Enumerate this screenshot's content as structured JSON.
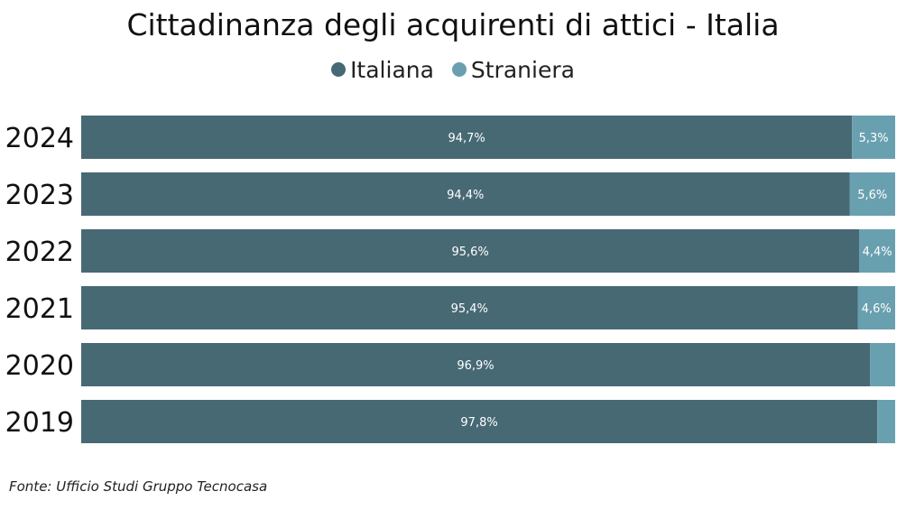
{
  "chart_data": {
    "type": "bar",
    "orientation": "horizontal-stacked-100",
    "title": "Cittadinanza degli acquirenti di attici - Italia",
    "categories": [
      "2024",
      "2023",
      "2022",
      "2021",
      "2020",
      "2019"
    ],
    "series": [
      {
        "name": "Italiana",
        "color": "#476974",
        "values": [
          94.7,
          94.4,
          95.6,
          95.4,
          96.9,
          97.8
        ],
        "labels": [
          "94,7%",
          "94,4%",
          "95,6%",
          "95,4%",
          "96,9%",
          "97,8%"
        ]
      },
      {
        "name": "Straniera",
        "color": "#69a0b0",
        "values": [
          5.3,
          5.6,
          4.4,
          4.6,
          3.1,
          2.2
        ],
        "labels": [
          "5,3%",
          "5,6%",
          "4,4%",
          "4,6%",
          "",
          ""
        ]
      }
    ],
    "xlim": [
      0,
      100
    ],
    "legend": "top-center"
  },
  "source": "Fonte: Ufficio Studi Gruppo Tecnocasa"
}
